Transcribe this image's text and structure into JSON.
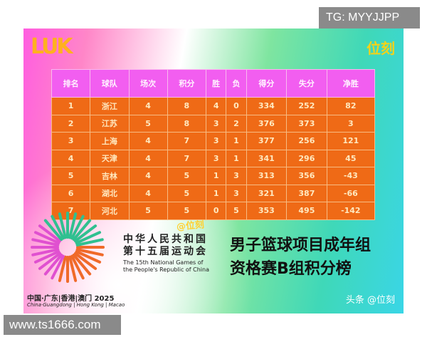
{
  "overlay": {
    "top_tag": "TG: MYYJJPP",
    "site": "www.ts1666.com"
  },
  "poster": {
    "logo": "LUK",
    "brand": "位刻",
    "watermark": "@位刻",
    "headers": [
      "排名",
      "球队",
      "场次",
      "积分",
      "胜",
      "负",
      "得分",
      "失分",
      "净胜"
    ],
    "rows": [
      [
        "1",
        "浙江",
        "4",
        "8",
        "4",
        "0",
        "334",
        "252",
        "82"
      ],
      [
        "2",
        "江苏",
        "5",
        "8",
        "3",
        "2",
        "376",
        "373",
        "3"
      ],
      [
        "3",
        "上海",
        "4",
        "7",
        "3",
        "1",
        "377",
        "256",
        "121"
      ],
      [
        "4",
        "天津",
        "4",
        "7",
        "3",
        "1",
        "341",
        "296",
        "45"
      ],
      [
        "5",
        "吉林",
        "4",
        "5",
        "1",
        "3",
        "313",
        "356",
        "-43"
      ],
      [
        "6",
        "湖北",
        "4",
        "5",
        "1",
        "3",
        "321",
        "387",
        "-66"
      ],
      [
        "7",
        "河北",
        "5",
        "5",
        "0",
        "5",
        "353",
        "495",
        "-142"
      ]
    ],
    "games_cn": [
      "中华人民共和国",
      "第十五届运动会"
    ],
    "games_en": [
      "The 15th National Games of",
      "the People's Republic of China"
    ],
    "title": [
      "男子篮球项目成年组",
      "资格赛B组积分榜"
    ],
    "location_cn": "中国·广东|香港|澳门 2025",
    "location_en": "China·Guangdong | Hong Kong | Macao",
    "credit": "头条 @位刻"
  }
}
